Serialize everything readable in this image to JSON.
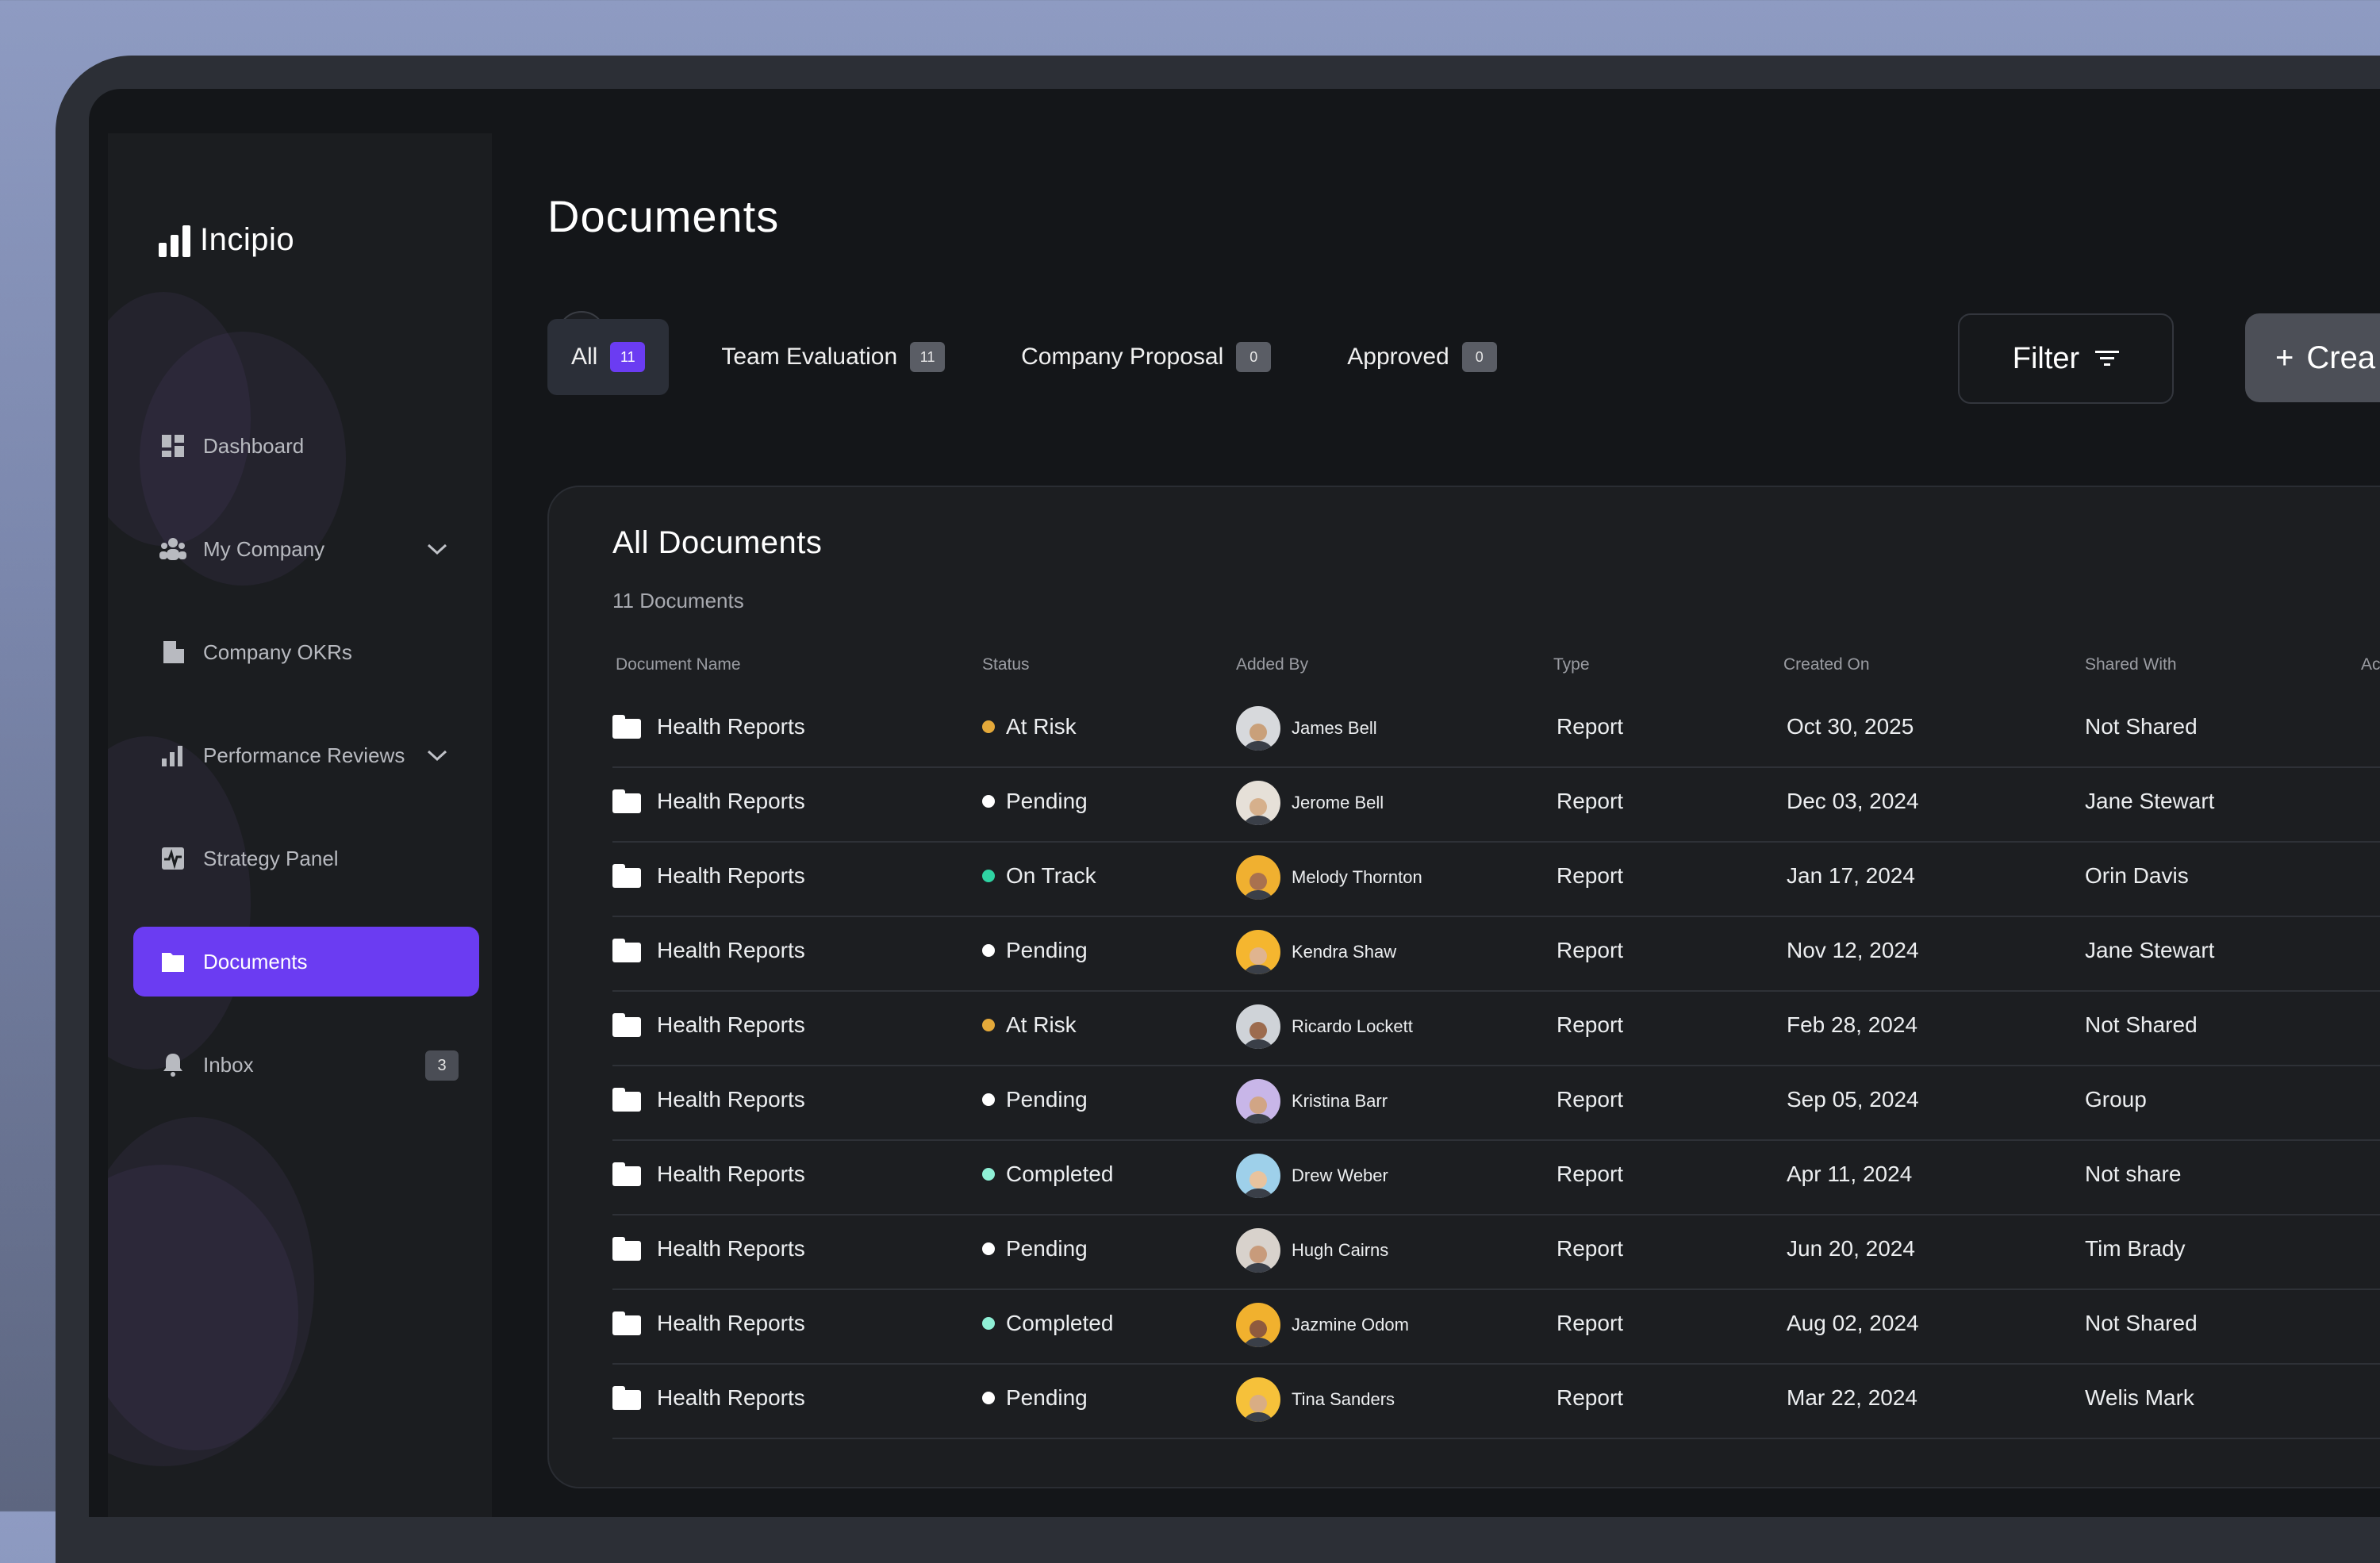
{
  "app": {
    "name": "Incipio"
  },
  "sidebar": {
    "items": [
      {
        "label": "Dashboard",
        "icon": "dashboard-icon"
      },
      {
        "label": "My Company",
        "icon": "team-icon",
        "has_chevron": true
      },
      {
        "label": "Company OKRs",
        "icon": "building-icon"
      },
      {
        "label": "Performance Reviews",
        "icon": "bar-chart-icon",
        "has_chevron": true
      },
      {
        "label": "Strategy Panel",
        "icon": "pulse-icon"
      },
      {
        "label": "Documents",
        "icon": "folder-icon",
        "active": true
      },
      {
        "label": "Inbox",
        "icon": "bell-icon",
        "count": "3"
      }
    ]
  },
  "page": {
    "title": "Documents"
  },
  "tabs": [
    {
      "label": "All",
      "count": "11",
      "active": true
    },
    {
      "label": "Team Evaluation",
      "count": "11"
    },
    {
      "label": "Company Proposal",
      "count": "0"
    },
    {
      "label": "Approved",
      "count": "0"
    }
  ],
  "actions": {
    "filter_label": "Filter",
    "create_label": "Crea"
  },
  "card": {
    "title": "All Documents",
    "subtitle": "11 Documents"
  },
  "table": {
    "headers": [
      "Document Name",
      "Status",
      "Added By",
      "Type",
      "Created On",
      "Shared With",
      "Ac"
    ],
    "rows": [
      {
        "doc": "Health Reports",
        "status": "At Risk",
        "status_color": "#e4a93a",
        "added_by": "James Bell",
        "type": "Report",
        "created": "Oct 30, 2025",
        "shared": "Not Shared"
      },
      {
        "doc": "Health Reports",
        "status": "Pending",
        "status_color": "#ffffff",
        "added_by": "Jerome Bell",
        "type": "Report",
        "created": "Dec 03, 2024",
        "shared": "Jane Stewart"
      },
      {
        "doc": "Health Reports",
        "status": "On Track",
        "status_color": "#2fd3a3",
        "added_by": "Melody Thornton",
        "type": "Report",
        "created": "Jan 17, 2024",
        "shared": "Orin Davis"
      },
      {
        "doc": "Health Reports",
        "status": "Pending",
        "status_color": "#ffffff",
        "added_by": "Kendra Shaw",
        "type": "Report",
        "created": "Nov 12, 2024",
        "shared": "Jane Stewart"
      },
      {
        "doc": "Health Reports",
        "status": "At Risk",
        "status_color": "#e4a93a",
        "added_by": "Ricardo Lockett",
        "type": "Report",
        "created": "Feb 28, 2024",
        "shared": "Not Shared"
      },
      {
        "doc": "Health Reports",
        "status": "Pending",
        "status_color": "#ffffff",
        "added_by": "Kristina Barr",
        "type": "Report",
        "created": "Sep 05, 2024",
        "shared": "Group"
      },
      {
        "doc": "Health Reports",
        "status": "Completed",
        "status_color": "#8ff0d6",
        "added_by": "Drew Weber",
        "type": "Report",
        "created": "Apr 11, 2024",
        "shared": "Not share"
      },
      {
        "doc": "Health Reports",
        "status": "Pending",
        "status_color": "#ffffff",
        "added_by": "Hugh Cairns",
        "type": "Report",
        "created": "Jun 20, 2024",
        "shared": "Tim Brady"
      },
      {
        "doc": "Health Reports",
        "status": "Completed",
        "status_color": "#8ff0d6",
        "added_by": "Jazmine Odom",
        "type": "Report",
        "created": "Aug 02, 2024",
        "shared": "Not Shared"
      },
      {
        "doc": "Health Reports",
        "status": "Pending",
        "status_color": "#ffffff",
        "added_by": "Tina Sanders",
        "type": "Report",
        "created": "Mar 22, 2024",
        "shared": "Welis Mark"
      }
    ]
  },
  "colors": {
    "accent": "#6b3cf2",
    "background": "#141619",
    "panel": "#1c1e21"
  }
}
